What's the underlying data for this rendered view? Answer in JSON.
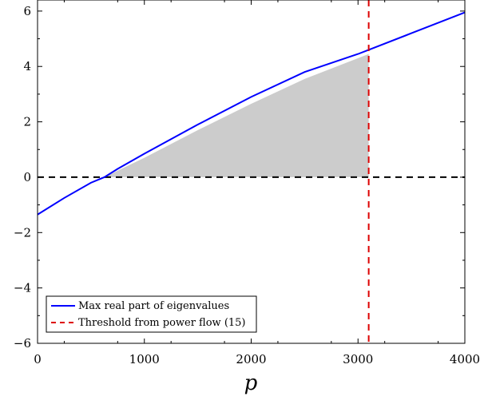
{
  "chart_data": {
    "type": "line",
    "title": "",
    "xlabel": "p",
    "ylabel": "",
    "xlim": [
      0,
      4000
    ],
    "ylim": [
      -6,
      6.4
    ],
    "x_ticks": [
      0,
      1000,
      2000,
      3000,
      4000
    ],
    "x_tick_labels": [
      "0",
      "1000",
      "2000",
      "3000",
      "4000"
    ],
    "y_ticks": [
      -6,
      -4,
      -2,
      0,
      2,
      4,
      6
    ],
    "y_tick_labels": [
      "−6",
      "−4",
      "−2",
      "0",
      "2",
      "4",
      "6"
    ],
    "grid": false,
    "legend_position": "bottom-left",
    "series": [
      {
        "name": "Max real part of eigenvalues",
        "style": "solid",
        "color": "#0000ff",
        "x": [
          0,
          250,
          500,
          625,
          750,
          1000,
          1500,
          2000,
          2500,
          3000,
          3100,
          3500,
          4000
        ],
        "y": [
          -1.35,
          -0.75,
          -0.2,
          0.0,
          0.3,
          0.85,
          1.9,
          2.9,
          3.8,
          4.45,
          4.6,
          5.2,
          5.95
        ]
      },
      {
        "name": "Threshold from power flow (15)",
        "style": "dashed",
        "color": "#dd0000",
        "orientation": "vertical",
        "x": 3100
      }
    ],
    "reference_lines": [
      {
        "orientation": "horizontal",
        "y": 0,
        "style": "dashed",
        "color": "#000000"
      }
    ],
    "shaded_region": {
      "color": "#cccccc",
      "x": [
        625,
        1000,
        1500,
        2000,
        2500,
        3000,
        3100
      ],
      "y_upper": [
        0.0,
        0.7,
        1.7,
        2.65,
        3.55,
        4.3,
        4.45
      ],
      "y_lower": 0
    }
  }
}
